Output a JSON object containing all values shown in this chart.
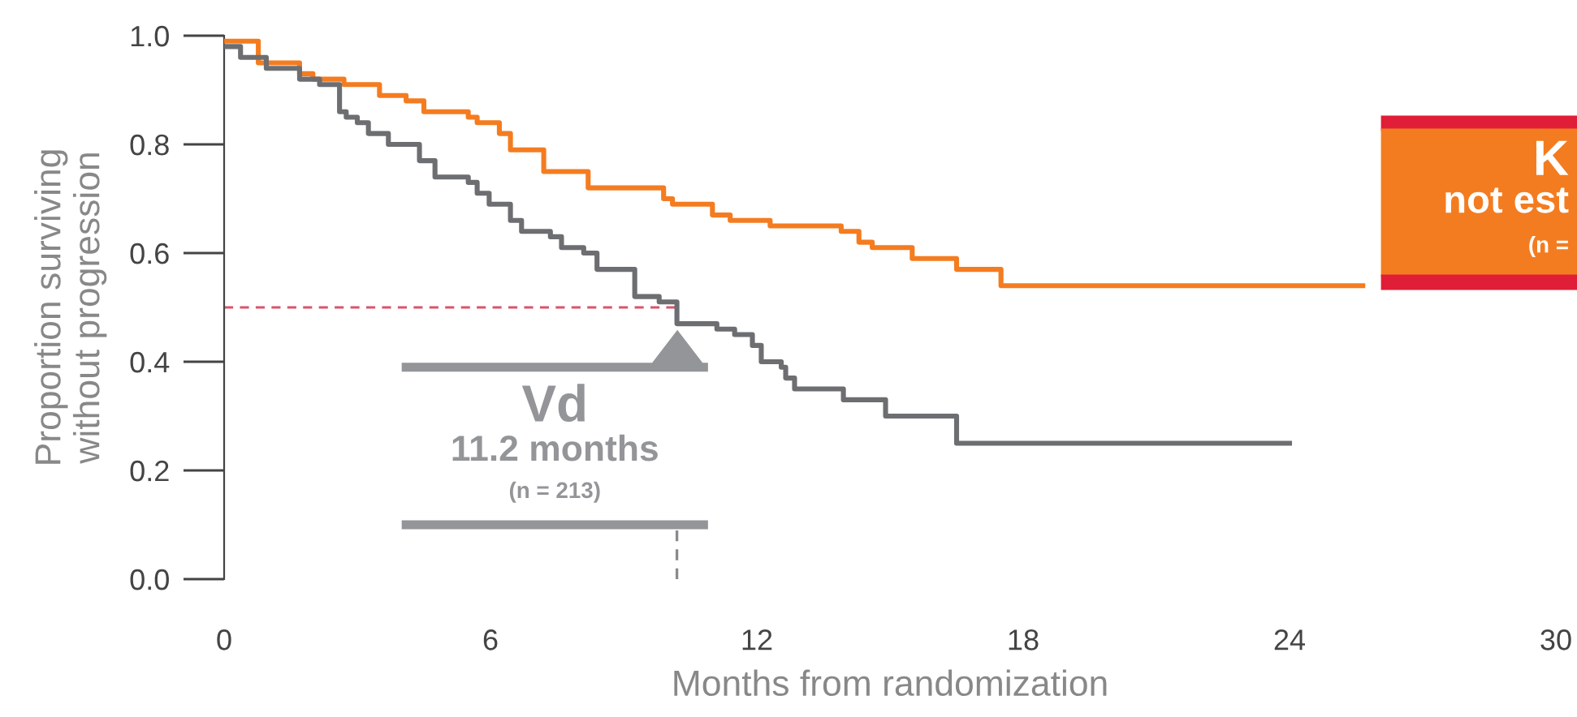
{
  "chart_data": {
    "type": "step",
    "xlabel": "Months from randomization",
    "ylabel": "Proportion surviving\nwithout progression",
    "xlim": [
      0,
      30
    ],
    "xticks": [
      0,
      6,
      12,
      18,
      24,
      30
    ],
    "ylim": [
      0,
      1.0
    ],
    "yticks": [
      {
        "value": 0,
        "label": "0.0"
      },
      {
        "value": 0.2,
        "label": "0.2"
      },
      {
        "value": 0.4,
        "label": "0.4"
      },
      {
        "value": 0.6,
        "label": "0.6"
      },
      {
        "value": 0.8,
        "label": "0.8"
      },
      {
        "value": 1.0,
        "label": "1.0"
      }
    ],
    "grid": false,
    "legend": false,
    "marker": "none",
    "line_style": "solid",
    "series": [
      {
        "name": "K",
        "color": "#f47c20",
        "x": [
          0,
          0.77,
          1.7,
          2.0,
          2.7,
          3.5,
          4.1,
          4.5,
          5.5,
          5.7,
          6.2,
          6.45,
          7.2,
          8.2,
          9.9,
          10.1,
          11.0,
          11.4,
          12.3,
          13.9,
          14.3,
          14.6,
          15.5,
          16.5,
          17.5,
          25.65
        ],
        "values": [
          0.99,
          0.95,
          0.93,
          0.92,
          0.91,
          0.89,
          0.88,
          0.86,
          0.85,
          0.84,
          0.82,
          0.79,
          0.75,
          0.72,
          0.7,
          0.69,
          0.67,
          0.66,
          0.65,
          0.64,
          0.62,
          0.61,
          0.59,
          0.57,
          0.54,
          0.54
        ]
      },
      {
        "name": "Vd",
        "color": "#6d6e71",
        "x": [
          0,
          0.37,
          0.95,
          1.7,
          2.15,
          2.6,
          2.75,
          3.0,
          3.25,
          3.7,
          4.4,
          4.75,
          5.5,
          5.7,
          5.97,
          6.45,
          6.7,
          7.35,
          7.6,
          8.1,
          8.4,
          9.25,
          9.8,
          10.2,
          11.1,
          11.5,
          11.9,
          12.1,
          12.55,
          12.65,
          12.85,
          13.95,
          14.9,
          16.5,
          24.0
        ],
        "values": [
          0.98,
          0.96,
          0.94,
          0.92,
          0.91,
          0.86,
          0.85,
          0.84,
          0.82,
          0.8,
          0.77,
          0.74,
          0.73,
          0.71,
          0.69,
          0.66,
          0.64,
          0.63,
          0.61,
          0.6,
          0.57,
          0.52,
          0.51,
          0.47,
          0.46,
          0.45,
          0.43,
          0.4,
          0.39,
          0.37,
          0.35,
          0.33,
          0.3,
          0.25,
          0.25
        ]
      }
    ],
    "ref_lines": [
      {
        "axis": "y",
        "value": 0.5,
        "color": "#d9546a",
        "line_style": "dashed"
      },
      {
        "axis": "x",
        "value": 10.2,
        "color": "#8a8a8a",
        "line_style": "dashed"
      }
    ],
    "annotations": [
      "not est",
      "(n =",
      "11.2 months",
      "(n = 213)"
    ]
  }
}
